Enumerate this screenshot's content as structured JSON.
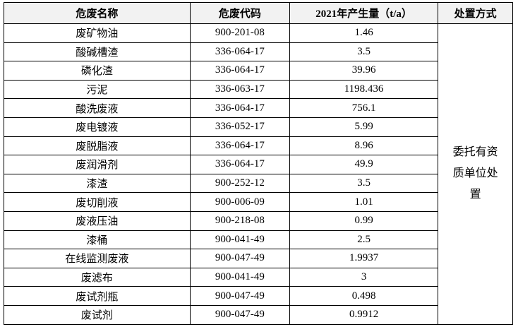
{
  "table": {
    "header": [
      "危废名称",
      "危废代码",
      "2021年产生量（t/a）",
      "处置方式"
    ],
    "rows": [
      [
        "废矿物油",
        "900-201-08",
        "1.46"
      ],
      [
        "酸碱槽渣",
        "336-064-17",
        "3.5"
      ],
      [
        "磷化渣",
        "336-064-17",
        "39.96"
      ],
      [
        "污泥",
        "336-063-17",
        "1198.436"
      ],
      [
        "酸洗废液",
        "336-064-17",
        "756.1"
      ],
      [
        "废电镀液",
        "336-052-17",
        "5.99"
      ],
      [
        "废脱脂液",
        "336-064-17",
        "8.96"
      ],
      [
        "废润滑剂",
        "336-064-17",
        "49.9"
      ],
      [
        "漆渣",
        "900-252-12",
        "3.5"
      ],
      [
        "废切削液",
        "900-006-09",
        "1.01"
      ],
      [
        "废液压油",
        "900-218-08",
        "0.99"
      ],
      [
        "漆桶",
        "900-041-49",
        "2.5"
      ],
      [
        "在线监测废液",
        "900-047-49",
        "1.9937"
      ],
      [
        "废滤布",
        "900-041-49",
        "3"
      ],
      [
        "废试剂瓶",
        "900-047-49",
        "0.498"
      ],
      [
        "废试剂",
        "900-047-49",
        "0.9912"
      ]
    ],
    "disposal": "委托有资质单位处置"
  }
}
